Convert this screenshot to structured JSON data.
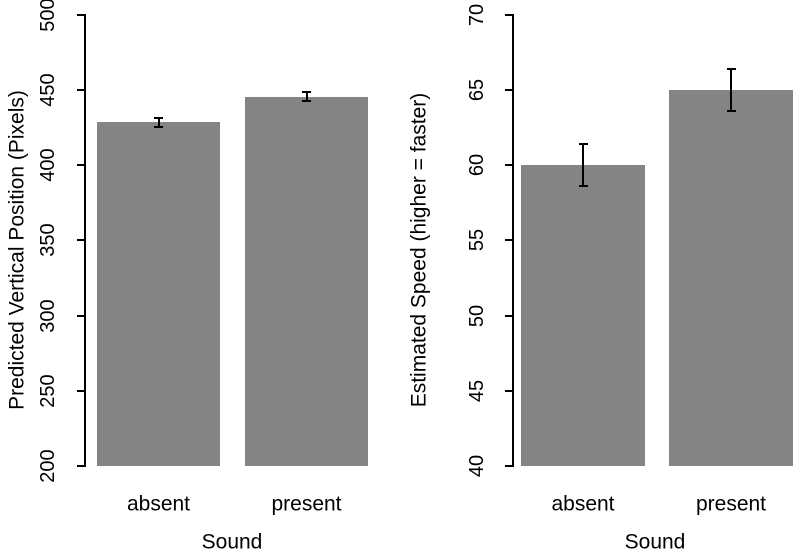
{
  "figure": {
    "background": "#ffffff",
    "bar_color": "#848484",
    "axis_color": "#000000",
    "text_color": "#000000"
  },
  "chart_data": [
    {
      "type": "bar",
      "title": "",
      "xlabel": "Sound",
      "ylabel": "Predicted Vertical Position (Pixels)",
      "categories": [
        "absent",
        "present"
      ],
      "values": [
        428.5,
        445.5
      ],
      "error_bars": [
        {
          "low": 425.5,
          "high": 431.5
        },
        {
          "low": 442.5,
          "high": 448.5
        }
      ],
      "ylim": [
        200,
        500
      ],
      "yticks": [
        200,
        250,
        300,
        350,
        400,
        450,
        500
      ],
      "grid": "off",
      "legend": "none",
      "bar_color": "#848484"
    },
    {
      "type": "bar",
      "title": "",
      "xlabel": "Sound",
      "ylabel": "Estimated Speed (higher = faster)",
      "categories": [
        "absent",
        "present"
      ],
      "values": [
        60,
        65
      ],
      "error_bars": [
        {
          "low": 58.6,
          "high": 61.4
        },
        {
          "low": 63.6,
          "high": 66.4
        }
      ],
      "ylim": [
        40,
        70
      ],
      "yticks": [
        40,
        45,
        50,
        55,
        60,
        65,
        70
      ],
      "grid": "off",
      "legend": "none",
      "bar_color": "#848484"
    }
  ]
}
